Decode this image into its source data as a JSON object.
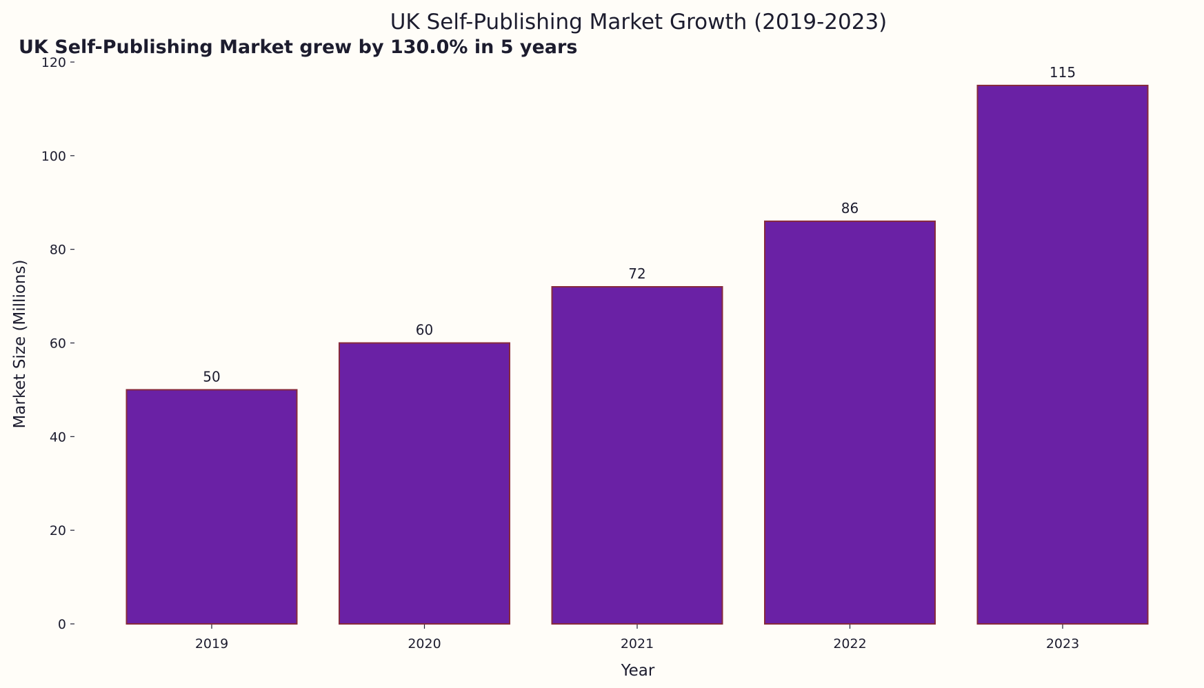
{
  "chart_data": {
    "type": "bar",
    "title": "UK Self-Publishing Market Growth (2019-2023)",
    "subtitle": "UK Self-Publishing Market grew by 130.0% in 5 years",
    "xlabel": "Year",
    "ylabel": "Market Size (Millions)",
    "categories": [
      "2019",
      "2020",
      "2021",
      "2022",
      "2023"
    ],
    "values": [
      50,
      60,
      72,
      86,
      115
    ],
    "data_labels": [
      "50",
      "60",
      "72",
      "86",
      "115"
    ],
    "ylim": [
      0,
      120
    ],
    "yticks": [
      0,
      20,
      40,
      60,
      80,
      100,
      120
    ],
    "grid": false,
    "colors": {
      "bar": "#6a21a5",
      "bar_edge": "#872a3c",
      "background": "#fffdf8",
      "text": "#1c1c2e"
    }
  }
}
